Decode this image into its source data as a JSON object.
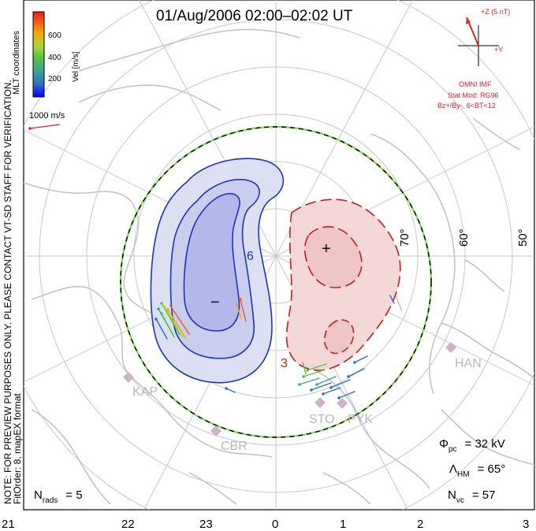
{
  "title": "01/Aug/2006 02:00–02:02 UT",
  "side_note_1": "NOTE: FOR PREVIEW PURPOSES ONLY. PLEASE CONTACT VT-SD STAFF FOR VERIFICATION.",
  "side_note_2": "FitOrder: 8, mapEX format",
  "mlt_label": "MLT coordinates",
  "color_bar": {
    "label": "Vel [m/s]",
    "ticks": [
      "600",
      "400",
      "200"
    ],
    "colors": [
      "#0000ff",
      "#2e6fbf",
      "#3aa39a",
      "#55c244",
      "#a9d63a",
      "#f2a900",
      "#f05a14",
      "#e8201a"
    ]
  },
  "scale_vector": {
    "label": "1000 m/s"
  },
  "imf": {
    "z_label": "+Z (5 nT)",
    "y_label": "+Y",
    "omni_label": "OMNI IMF",
    "model_line_1": "Stat Mod: RG96",
    "model_line_2": "Bz+/By-, 6<BT<12"
  },
  "lat_labels": [
    "70°",
    "60°",
    "50°"
  ],
  "convection_markers": {
    "min": "−",
    "max": "+"
  },
  "contour_label": "6",
  "contour_label_2": "3",
  "stations": [
    "KAP",
    "CBR",
    "STO",
    "PYK",
    "HAN"
  ],
  "stats": {
    "phi_pc": {
      "symbol": "Φ",
      "sub": "pc",
      "value": "= 32 kV"
    },
    "lambda_hm": {
      "symbol": "Λ",
      "sub": "HM",
      "value": "= 65°"
    },
    "n_vc": {
      "symbol": "N",
      "sub": "vc",
      "value": "= 57"
    },
    "n_rads": {
      "symbol": "N",
      "sub": "rads",
      "value": "= 5"
    }
  },
  "mlt_ticks": [
    "21",
    "22",
    "23",
    "0",
    "1",
    "2",
    "3"
  ]
}
